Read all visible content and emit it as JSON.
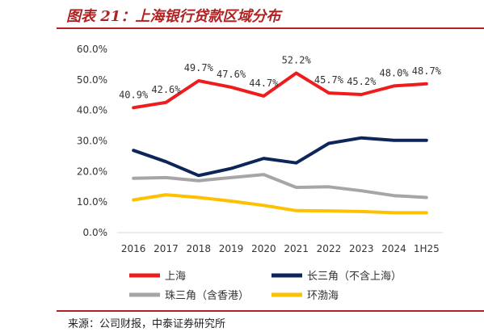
{
  "figure": {
    "title": "图表 21：上海银行贷款区域分布",
    "source": "来源：公司财报，中泰证券研究所"
  },
  "chart_data": {
    "type": "line",
    "title": "",
    "xlabel": "",
    "ylabel": "",
    "categories": [
      "2016",
      "2017",
      "2018",
      "2019",
      "2020",
      "2021",
      "2022",
      "2023",
      "2024",
      "1H25"
    ],
    "y_ticks": [
      "0.0%",
      "10.0%",
      "20.0%",
      "30.0%",
      "40.0%",
      "50.0%",
      "60.0%"
    ],
    "ylim": [
      0,
      60
    ],
    "grid": false,
    "legend_position": "bottom",
    "series": [
      {
        "name": "上海",
        "color": "#ee1c1c",
        "values": [
          40.9,
          42.6,
          49.7,
          47.6,
          44.7,
          52.2,
          45.7,
          45.2,
          48.0,
          48.7
        ],
        "labels": [
          "40.9%",
          "42.6%",
          "49.7%",
          "47.6%",
          "44.7%",
          "52.2%",
          "45.7%",
          "45.2%",
          "48.0%",
          "48.7%"
        ]
      },
      {
        "name": "长三角（不含上海）",
        "color": "#0c2659",
        "values": [
          26.9,
          23.2,
          18.7,
          21.0,
          24.3,
          22.8,
          29.2,
          31.0,
          30.2,
          30.2
        ]
      },
      {
        "name": "珠三角（含香港）",
        "color": "#a6a6a6",
        "values": [
          17.8,
          18.0,
          17.0,
          18.0,
          19.0,
          14.8,
          15.0,
          13.7,
          12.1,
          11.5
        ]
      },
      {
        "name": "环渤海",
        "color": "#ffc000",
        "values": [
          10.7,
          12.4,
          11.5,
          10.3,
          8.9,
          7.2,
          7.1,
          6.9,
          6.5,
          6.5
        ]
      }
    ]
  }
}
